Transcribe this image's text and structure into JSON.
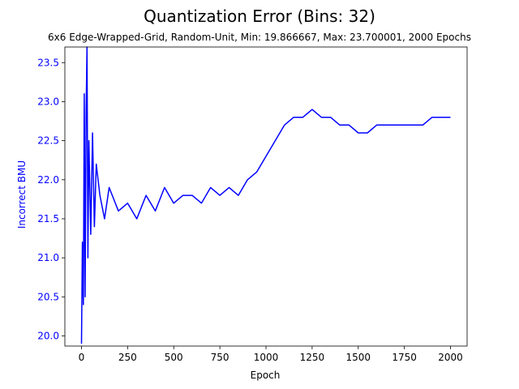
{
  "chart_data": {
    "type": "line",
    "title": "Quantization Error (Bins: 32)",
    "subtitle": "6x6 Edge-Wrapped-Grid, Random-Unit, Min: 19.866667, Max: 23.700001, 2000 Epochs",
    "xlabel": "Epoch",
    "ylabel": "Incorrect BMU",
    "xlim": [
      -90,
      2090
    ],
    "ylim": [
      19.87,
      23.7
    ],
    "x_ticks": [
      0,
      250,
      500,
      750,
      1000,
      1250,
      1500,
      1750,
      2000
    ],
    "x_tick_labels": [
      "0",
      "250",
      "500",
      "750",
      "1000",
      "1250",
      "1500",
      "1750",
      "2000"
    ],
    "y_ticks": [
      20.0,
      20.5,
      21.0,
      21.5,
      22.0,
      22.5,
      23.0,
      23.5
    ],
    "y_tick_labels": [
      "20.0",
      "20.5",
      "21.0",
      "21.5",
      "22.0",
      "22.5",
      "23.0",
      "23.5"
    ],
    "series_color": "#0000ff",
    "ylabel_color": "#0000ff",
    "series": [
      {
        "x": [
          0,
          5,
          10,
          15,
          20,
          25,
          30,
          35,
          40,
          50,
          60,
          70,
          80,
          100,
          125,
          150,
          200,
          250,
          300,
          350,
          400,
          450,
          500,
          550,
          600,
          650,
          700,
          750,
          800,
          850,
          900,
          950,
          1000,
          1050,
          1100,
          1150,
          1200,
          1250,
          1300,
          1350,
          1400,
          1450,
          1500,
          1550,
          1600,
          1650,
          1700,
          1750,
          1800,
          1850,
          1900,
          1950,
          2000
        ],
        "y": [
          19.9,
          21.2,
          20.4,
          23.1,
          20.5,
          22.9,
          23.7,
          21.0,
          22.5,
          21.3,
          22.6,
          21.4,
          22.2,
          21.8,
          21.5,
          21.9,
          21.6,
          21.7,
          21.5,
          21.8,
          21.6,
          21.9,
          21.7,
          21.8,
          21.8,
          21.7,
          21.9,
          21.8,
          21.9,
          21.8,
          22.0,
          22.1,
          22.3,
          22.5,
          22.7,
          22.8,
          22.8,
          22.9,
          22.8,
          22.8,
          22.7,
          22.7,
          22.6,
          22.6,
          22.7,
          22.7,
          22.7,
          22.7,
          22.7,
          22.7,
          22.8,
          22.8,
          22.8
        ]
      }
    ]
  }
}
